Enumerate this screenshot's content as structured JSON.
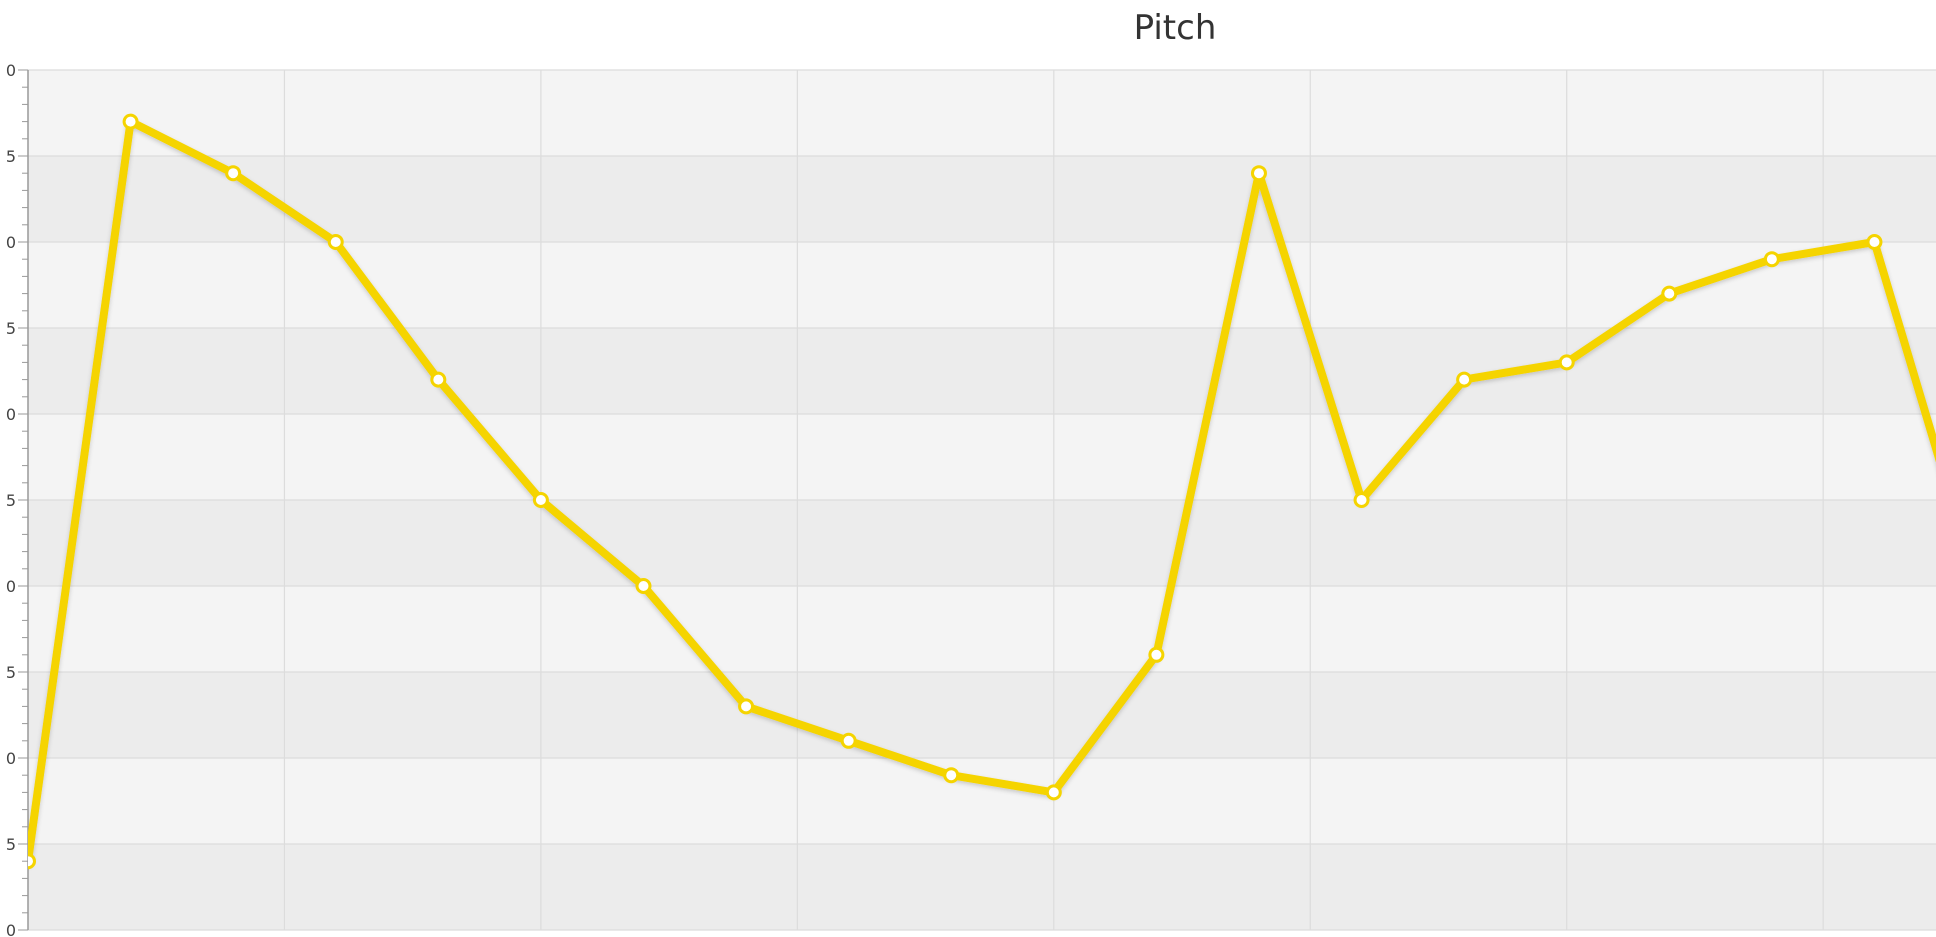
{
  "chart_data": {
    "type": "line",
    "title": "Pitch",
    "xlabel": "",
    "ylabel": "",
    "ylim": [
      0,
      50
    ],
    "xlim": [
      0,
      18.6
    ],
    "y_ticks": [
      "0",
      "5",
      "0",
      "5",
      "0",
      "5",
      "0",
      "5",
      "0",
      "5",
      "0"
    ],
    "grid": true,
    "alternating_row_bands": true,
    "legend": "none",
    "colors": {
      "line": "#f5d400",
      "marker_fill": "#ffffff",
      "band_light": "#f4f4f4",
      "band_dark": "#ececec",
      "grid": "#dcdcdc",
      "axis": "#999999"
    },
    "series": [
      {
        "x": [
          0,
          1,
          2,
          3,
          4,
          5,
          6,
          7,
          8,
          9,
          10,
          11,
          12,
          13,
          14,
          15,
          16,
          17,
          18,
          19
        ],
        "values": [
          4,
          47,
          44,
          40,
          32,
          25,
          20,
          13,
          11,
          9,
          8,
          16,
          44,
          25,
          32,
          33,
          37,
          39,
          40,
          20
        ]
      }
    ]
  }
}
